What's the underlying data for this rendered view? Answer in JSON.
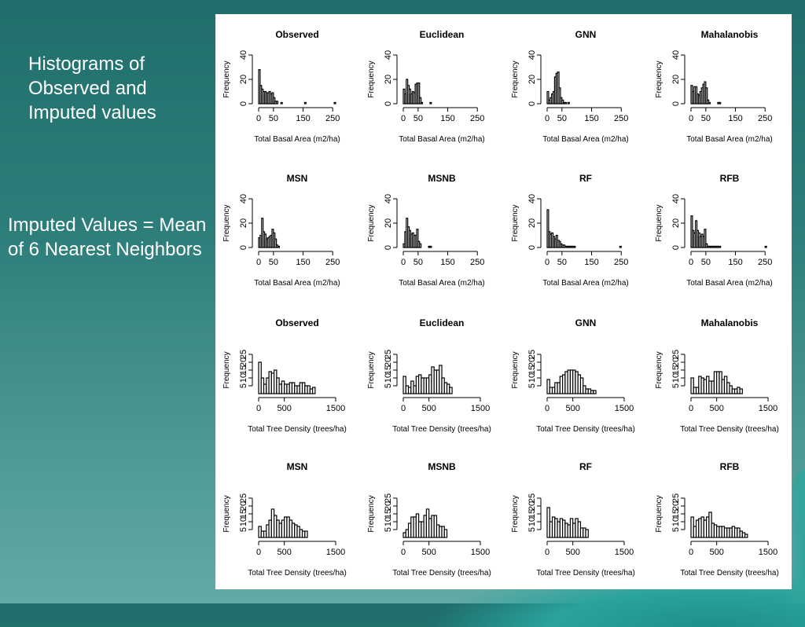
{
  "slide": {
    "text_block_1": "Histograms of Observed and Imputed values",
    "text_block_2": "Imputed Values = Mean of 6 Nearest Neighbors"
  },
  "colors": {
    "bar_fill": "#ffffff",
    "bar_stroke": "#000000"
  },
  "chart_data": [
    {
      "type": "bar",
      "title": "Observed",
      "xlabel": "Total Basal Area (m2/ha)",
      "ylabel": "Frequency",
      "xlim": [
        0,
        260
      ],
      "ylim": [
        0,
        40
      ],
      "xticks": [
        0,
        50,
        150,
        250
      ],
      "yticks": [
        0,
        20,
        40
      ],
      "bin_width": 5,
      "bins_start": 0,
      "values": [
        28,
        15,
        12,
        10,
        10,
        9,
        9,
        10,
        8,
        9,
        5,
        2,
        2,
        0,
        0,
        1,
        0,
        0,
        0,
        0,
        0,
        0,
        0,
        0,
        0,
        0,
        0,
        0,
        0,
        0,
        0,
        1,
        0,
        0,
        0,
        0,
        0,
        0,
        0,
        0,
        0,
        0,
        0,
        0,
        0,
        0,
        0,
        0,
        0,
        0,
        0,
        1
      ]
    },
    {
      "type": "bar",
      "title": "Euclidean",
      "xlabel": "Total Basal Area (m2/ha)",
      "ylabel": "Frequency",
      "xlim": [
        0,
        260
      ],
      "ylim": [
        0,
        40
      ],
      "xticks": [
        0,
        50,
        150,
        250
      ],
      "yticks": [
        0,
        20,
        40
      ],
      "bin_width": 5,
      "bins_start": 0,
      "values": [
        12,
        8,
        20,
        15,
        12,
        8,
        10,
        9,
        16,
        17,
        17,
        5,
        1,
        0,
        0,
        0,
        0,
        0,
        1
      ]
    },
    {
      "type": "bar",
      "title": "GNN",
      "xlabel": "Total Basal Area (m2/ha)",
      "ylabel": "Frequency",
      "xlim": [
        0,
        260
      ],
      "ylim": [
        0,
        40
      ],
      "xticks": [
        0,
        50,
        150,
        250
      ],
      "yticks": [
        0,
        20,
        40
      ],
      "bin_width": 5,
      "bins_start": 0,
      "values": [
        10,
        3,
        5,
        8,
        10,
        22,
        25,
        26,
        13,
        5,
        3,
        1,
        1,
        0,
        1
      ]
    },
    {
      "type": "bar",
      "title": "Mahalanobis",
      "xlabel": "Total Basal Area (m2/ha)",
      "ylabel": "Frequency",
      "xlim": [
        0,
        260
      ],
      "ylim": [
        0,
        40
      ],
      "xticks": [
        0,
        50,
        150,
        250
      ],
      "yticks": [
        0,
        20,
        40
      ],
      "bin_width": 5,
      "bins_start": 0,
      "values": [
        15,
        10,
        14,
        14,
        8,
        7,
        10,
        13,
        16,
        18,
        13,
        3,
        1,
        0,
        0,
        0,
        0,
        0,
        1,
        1
      ]
    },
    {
      "type": "bar",
      "title": "MSN",
      "xlabel": "Total Basal Area (m2/ha)",
      "ylabel": "Frequency",
      "xlim": [
        0,
        260
      ],
      "ylim": [
        0,
        40
      ],
      "xticks": [
        0,
        50,
        150,
        250
      ],
      "yticks": [
        0,
        20,
        40
      ],
      "bin_width": 5,
      "bins_start": 0,
      "values": [
        8,
        10,
        24,
        13,
        11,
        7,
        8,
        9,
        10,
        15,
        12,
        7,
        2,
        1
      ]
    },
    {
      "type": "bar",
      "title": "MSNB",
      "xlabel": "Total Basal Area (m2/ha)",
      "ylabel": "Frequency",
      "xlim": [
        0,
        260
      ],
      "ylim": [
        0,
        40
      ],
      "xticks": [
        0,
        50,
        150,
        250
      ],
      "yticks": [
        0,
        20,
        40
      ],
      "bin_width": 5,
      "bins_start": 0,
      "values": [
        3,
        13,
        24,
        17,
        14,
        11,
        12,
        10,
        10,
        15,
        5,
        3,
        0,
        0,
        0,
        0,
        0,
        1,
        1
      ]
    },
    {
      "type": "bar",
      "title": "RF",
      "xlabel": "Total Basal Area (m2/ha)",
      "ylabel": "Frequency",
      "xlim": [
        0,
        260
      ],
      "ylim": [
        0,
        40
      ],
      "xticks": [
        0,
        50,
        150,
        250
      ],
      "yticks": [
        0,
        20,
        40
      ],
      "bin_width": 5,
      "bins_start": 0,
      "values": [
        31,
        13,
        11,
        12,
        9,
        7,
        10,
        6,
        5,
        3,
        2,
        2,
        1,
        1,
        1,
        1,
        1,
        1,
        1,
        0,
        0,
        0,
        0,
        0,
        0,
        0,
        0,
        0,
        0,
        0,
        0,
        0,
        0,
        0,
        0,
        0,
        0,
        0,
        0,
        0,
        0,
        0,
        0,
        0,
        0,
        0,
        0,
        0,
        0,
        1
      ]
    },
    {
      "type": "bar",
      "title": "RFB",
      "xlabel": "Total Basal Area (m2/ha)",
      "ylabel": "Frequency",
      "xlim": [
        0,
        260
      ],
      "ylim": [
        0,
        40
      ],
      "xticks": [
        0,
        50,
        150,
        250
      ],
      "yticks": [
        0,
        20,
        40
      ],
      "bin_width": 5,
      "bins_start": 0,
      "values": [
        26,
        14,
        12,
        22,
        14,
        12,
        9,
        11,
        9,
        15,
        3,
        1,
        1,
        1,
        1,
        1,
        1,
        1,
        1,
        1,
        0,
        0,
        0,
        0,
        0,
        0,
        0,
        0,
        0,
        0,
        0,
        0,
        0,
        0,
        0,
        0,
        0,
        0,
        0,
        0,
        0,
        0,
        0,
        0,
        0,
        0,
        0,
        0,
        0,
        0,
        1
      ]
    },
    {
      "type": "bar",
      "title": "Observed",
      "xlabel": "Total Tree Density (trees/ha)",
      "ylabel": "Frequency",
      "xlim": [
        0,
        1500
      ],
      "ylim": [
        0,
        30
      ],
      "xticks": [
        0,
        500,
        1500
      ],
      "yticks": [
        5,
        10,
        15,
        20,
        25
      ],
      "bin_width": 50,
      "bins_start": 0,
      "values": [
        20,
        10,
        6,
        10,
        14,
        13,
        15,
        10,
        6,
        8,
        6,
        6,
        7,
        7,
        5,
        5,
        7,
        7,
        5,
        5,
        3,
        4
      ]
    },
    {
      "type": "bar",
      "title": "Euclidean",
      "xlabel": "Total Tree Density (trees/ha)",
      "ylabel": "Frequency",
      "xlim": [
        0,
        1500
      ],
      "ylim": [
        0,
        30
      ],
      "xticks": [
        0,
        500,
        1500
      ],
      "yticks": [
        5,
        10,
        15,
        20,
        25
      ],
      "bin_width": 50,
      "bins_start": 0,
      "values": [
        11,
        5,
        4,
        8,
        5,
        11,
        12,
        10,
        10,
        10,
        12,
        17,
        15,
        15,
        18,
        10,
        7,
        6,
        4
      ]
    },
    {
      "type": "bar",
      "title": "GNN",
      "xlabel": "Total Tree Density (trees/ha)",
      "ylabel": "Frequency",
      "xlim": [
        0,
        1500
      ],
      "ylim": [
        0,
        30
      ],
      "xticks": [
        0,
        500,
        1500
      ],
      "yticks": [
        5,
        10,
        15,
        20,
        25
      ],
      "bin_width": 50,
      "bins_start": 0,
      "values": [
        9,
        4,
        4,
        7,
        7,
        11,
        12,
        14,
        15,
        15,
        15,
        14,
        12,
        10,
        5,
        3,
        3,
        2,
        2
      ]
    },
    {
      "type": "bar",
      "title": "Mahalanobis",
      "xlabel": "Total Tree Density (trees/ha)",
      "ylabel": "Frequency",
      "xlim": [
        0,
        1500
      ],
      "ylim": [
        0,
        30
      ],
      "xticks": [
        0,
        500,
        1500
      ],
      "yticks": [
        5,
        10,
        15,
        20,
        25
      ],
      "bin_width": 50,
      "bins_start": 0,
      "values": [
        10,
        4,
        4,
        11,
        10,
        9,
        11,
        8,
        8,
        14,
        14,
        14,
        9,
        11,
        7,
        5,
        3,
        3,
        4,
        3
      ]
    },
    {
      "type": "bar",
      "title": "MSN",
      "xlabel": "Total Tree Density (trees/ha)",
      "ylabel": "Frequency",
      "xlim": [
        0,
        1500
      ],
      "ylim": [
        0,
        30
      ],
      "xticks": [
        0,
        500,
        1500
      ],
      "yticks": [
        5,
        10,
        15,
        20,
        25
      ],
      "bin_width": 50,
      "bins_start": 0,
      "values": [
        7,
        4,
        4,
        8,
        11,
        18,
        14,
        11,
        9,
        11,
        13,
        13,
        11,
        9,
        8,
        7,
        5,
        4,
        4
      ]
    },
    {
      "type": "bar",
      "title": "MSNB",
      "xlabel": "Total Tree Density (trees/ha)",
      "ylabel": "Frequency",
      "xlim": [
        0,
        1500
      ],
      "ylim": [
        0,
        30
      ],
      "xticks": [
        0,
        500,
        1500
      ],
      "yticks": [
        5,
        10,
        15,
        20,
        25
      ],
      "bin_width": 50,
      "bins_start": 0,
      "values": [
        3,
        5,
        9,
        13,
        13,
        15,
        10,
        10,
        14,
        18,
        12,
        14,
        14,
        8,
        7,
        7,
        5
      ]
    },
    {
      "type": "bar",
      "title": "RF",
      "xlabel": "Total Tree Density (trees/ha)",
      "ylabel": "Frequency",
      "xlim": [
        0,
        1500
      ],
      "ylim": [
        0,
        30
      ],
      "xticks": [
        0,
        500,
        1500
      ],
      "yticks": [
        5,
        10,
        15,
        20,
        25
      ],
      "bin_width": 50,
      "bins_start": 0,
      "values": [
        19,
        10,
        13,
        12,
        10,
        12,
        11,
        9,
        8,
        12,
        9,
        12,
        10,
        6,
        6,
        5
      ]
    },
    {
      "type": "bar",
      "title": "RFB",
      "xlabel": "Total Tree Density (trees/ha)",
      "ylabel": "Frequency",
      "xlim": [
        0,
        1500
      ],
      "ylim": [
        0,
        30
      ],
      "xticks": [
        0,
        500,
        1500
      ],
      "yticks": [
        5,
        10,
        15,
        20,
        25
      ],
      "bin_width": 50,
      "bins_start": 0,
      "values": [
        13,
        7,
        11,
        12,
        13,
        11,
        13,
        16,
        9,
        8,
        7,
        7,
        7,
        6,
        6,
        6,
        7,
        6,
        6,
        4,
        3,
        2
      ]
    }
  ]
}
